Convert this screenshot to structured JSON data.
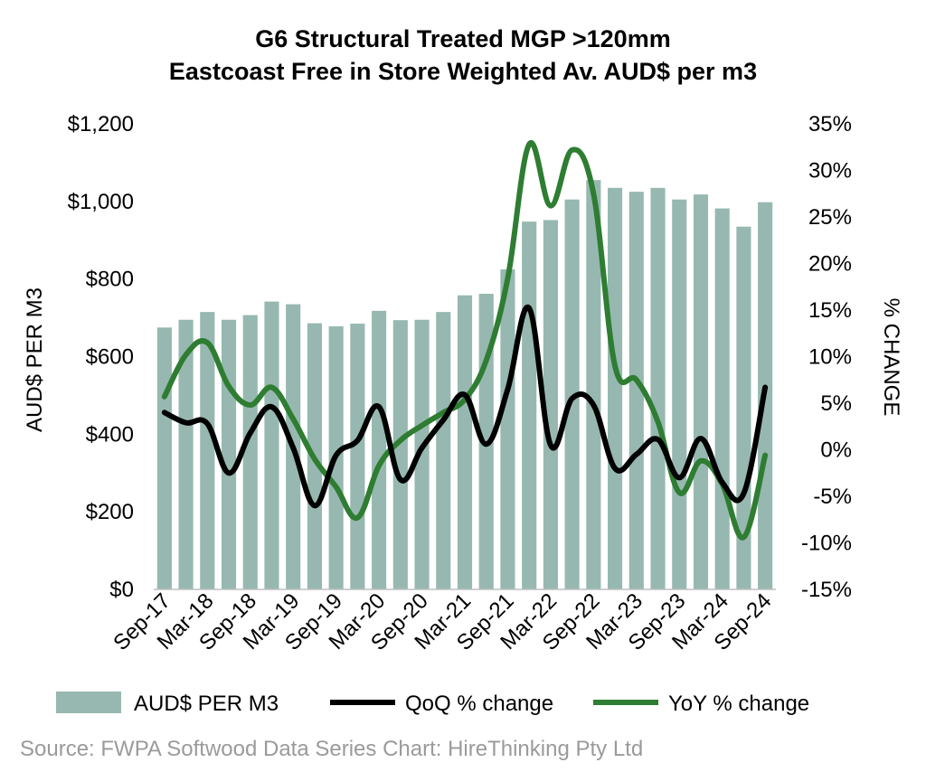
{
  "chart_data": {
    "type": "bar",
    "title": "G6 Structural Treated MGP >120mm",
    "subtitle": "Eastcoast Free in Store Weighted Av. AUD$ per m3",
    "ylabel": "AUD$ PER M3",
    "y2label": "% CHANGE",
    "ylim": [
      0,
      1200
    ],
    "y2lim": [
      -15,
      35
    ],
    "y_ticks": [
      "$0",
      "$200",
      "$400",
      "$600",
      "$800",
      "$1,000",
      "$1,200"
    ],
    "y2_ticks": [
      "-15%",
      "-10%",
      "-5%",
      "0%",
      "5%",
      "10%",
      "15%",
      "20%",
      "25%",
      "30%",
      "35%"
    ],
    "x_tick_labels": [
      "Sep-17",
      "Mar-18",
      "Sep-18",
      "Mar-19",
      "Sep-19",
      "Mar-20",
      "Sep-20",
      "Mar-21",
      "Sep-21",
      "Mar-22",
      "Sep-22",
      "Mar-23",
      "Sep-23",
      "Mar-24",
      "Sep-24"
    ],
    "categories": [
      "Sep-17",
      "Dec-17",
      "Mar-18",
      "Jun-18",
      "Sep-18",
      "Dec-18",
      "Mar-19",
      "Jun-19",
      "Sep-19",
      "Dec-19",
      "Mar-20",
      "Jun-20",
      "Sep-20",
      "Dec-20",
      "Mar-21",
      "Jun-21",
      "Sep-21",
      "Dec-21",
      "Mar-22",
      "Jun-22",
      "Sep-22",
      "Dec-22",
      "Mar-23",
      "Jun-23",
      "Sep-23",
      "Dec-23",
      "Mar-24",
      "Jun-24",
      "Sep-24"
    ],
    "series": [
      {
        "name": "AUD$ PER M3",
        "type": "bar",
        "axis": "left",
        "color": "#97b8b0",
        "values": [
          675,
          695,
          715,
          695,
          707,
          742,
          735,
          686,
          678,
          685,
          718,
          694,
          695,
          715,
          758,
          762,
          825,
          948,
          952,
          1005,
          1055,
          1035,
          1025,
          1035,
          1005,
          1018,
          982,
          935,
          998
        ]
      },
      {
        "name": "QoQ % change",
        "type": "line",
        "axis": "right",
        "color": "#000000",
        "values": [
          4.0,
          2.9,
          2.8,
          -2.5,
          1.8,
          4.6,
          0.2,
          -6.0,
          -0.6,
          1.0,
          4.6,
          -3.2,
          0.2,
          3.2,
          5.9,
          0.6,
          6.5,
          15.2,
          0.5,
          5.5,
          4.8,
          -2.0,
          -0.5,
          1.1,
          -3.0,
          1.2,
          -3.5,
          -4.7,
          6.7
        ]
      },
      {
        "name": "YoY % change",
        "type": "line",
        "axis": "right",
        "color": "#2e7d32",
        "values": [
          5.7,
          10.2,
          11.5,
          6.8,
          4.8,
          6.7,
          3.3,
          -1.0,
          -4.0,
          -7.3,
          -1.7,
          1.0,
          2.6,
          4.0,
          5.4,
          9.6,
          18.4,
          32.8,
          26.2,
          32.2,
          27.5,
          9.0,
          7.5,
          3.0,
          -4.6,
          -1.2,
          -3.7,
          -9.4,
          -0.6
        ]
      }
    ],
    "legend_position": "bottom",
    "grid": false,
    "source": "Source: FWPA Softwood Data Series Chart: HireThinking Pty Ltd"
  }
}
